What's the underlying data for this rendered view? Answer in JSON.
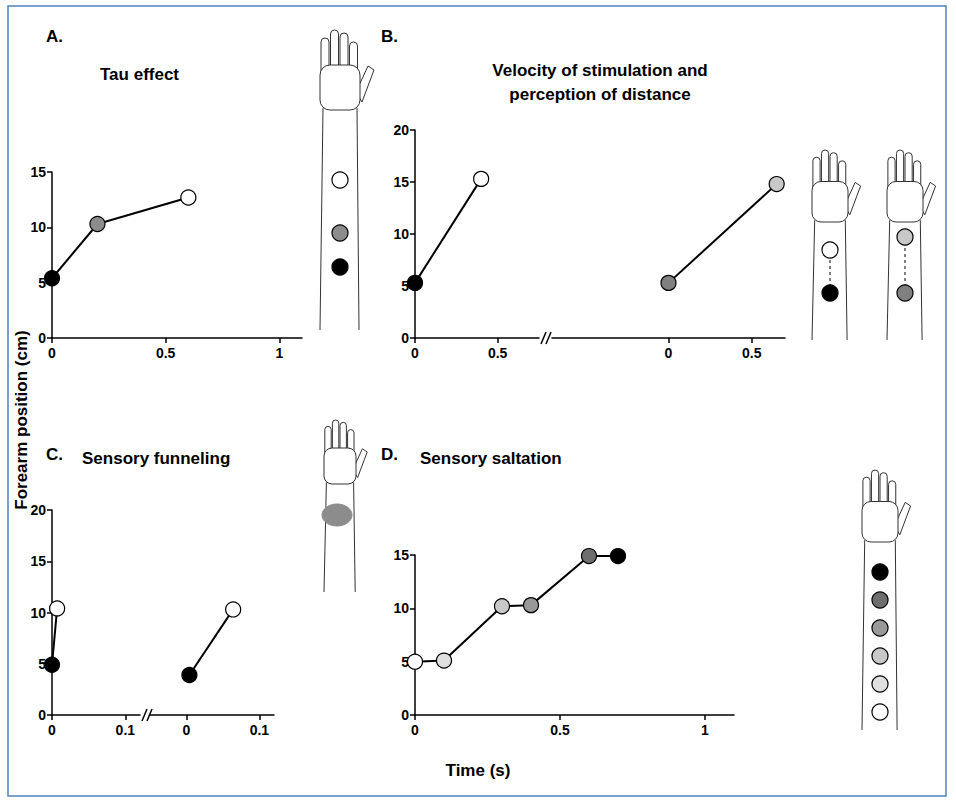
{
  "figure": {
    "xlabel": "Time (s)",
    "ylabel": "Forearm position (cm)"
  },
  "chart_data": [
    {
      "panel": "A.",
      "type": "line",
      "title": "Tau effect",
      "grid": false,
      "ylim": [
        0,
        15
      ],
      "yticks": [
        0,
        5,
        10,
        15
      ],
      "segments": [
        {
          "x": [
            0,
            0.2,
            0.6
          ],
          "values": [
            5.4,
            10.3,
            12.7
          ],
          "colors": [
            "#000000",
            "#8c8c8c",
            "#ffffff"
          ],
          "xlim": [
            0,
            1.1
          ],
          "xticks": [
            0,
            0.5,
            1
          ]
        }
      ]
    },
    {
      "panel": "B.",
      "type": "line",
      "title": "Velocity of stimulation and perception of distance",
      "grid": false,
      "ylim": [
        0,
        20
      ],
      "yticks": [
        0,
        5,
        10,
        15,
        20
      ],
      "segments": [
        {
          "x": [
            0,
            0.4
          ],
          "values": [
            5.3,
            15.3
          ],
          "colors": [
            "#000000",
            "#ffffff"
          ],
          "xlim": [
            0,
            0.75
          ],
          "xticks": [
            0,
            0.5
          ]
        },
        {
          "x": [
            0,
            0.65
          ],
          "values": [
            5.3,
            14.8
          ],
          "colors": [
            "#808080",
            "#c8c8c8"
          ],
          "xlim": [
            -0.7,
            0.7
          ],
          "xticks": [
            0,
            0.5
          ]
        }
      ]
    },
    {
      "panel": "C.",
      "type": "line",
      "title": "Sensory funneling",
      "grid": false,
      "ylim": [
        0,
        20
      ],
      "yticks": [
        0,
        5,
        10,
        15,
        20
      ],
      "segments": [
        {
          "x": [
            0,
            0.007
          ],
          "values": [
            4.9,
            10.4
          ],
          "colors": [
            "#000000",
            "#ffffff"
          ],
          "xlim": [
            0,
            0.12
          ],
          "xticks": [
            0,
            0.1
          ]
        },
        {
          "x": [
            0.004,
            0.064
          ],
          "values": [
            3.9,
            10.3
          ],
          "colors": [
            "#000000",
            "#ffffff"
          ],
          "xlim": [
            -0.05,
            0.12
          ],
          "xticks": [
            0,
            0.1
          ]
        }
      ]
    },
    {
      "panel": "D.",
      "type": "line",
      "title": "Sensory saltation",
      "grid": false,
      "ylim": [
        0,
        15
      ],
      "yticks": [
        0,
        5,
        10,
        15
      ],
      "segments": [
        {
          "x": [
            0,
            0.1,
            0.3,
            0.4,
            0.6,
            0.7
          ],
          "values": [
            5,
            5.1,
            10.2,
            10.3,
            14.9,
            14.9
          ],
          "colors": [
            "#ffffff",
            "#e0e0e0",
            "#c8c8c8",
            "#999999",
            "#6e6e6e",
            "#000000"
          ],
          "xlim": [
            0,
            1.1
          ],
          "xticks": [
            0,
            0.5,
            1
          ]
        }
      ]
    }
  ]
}
